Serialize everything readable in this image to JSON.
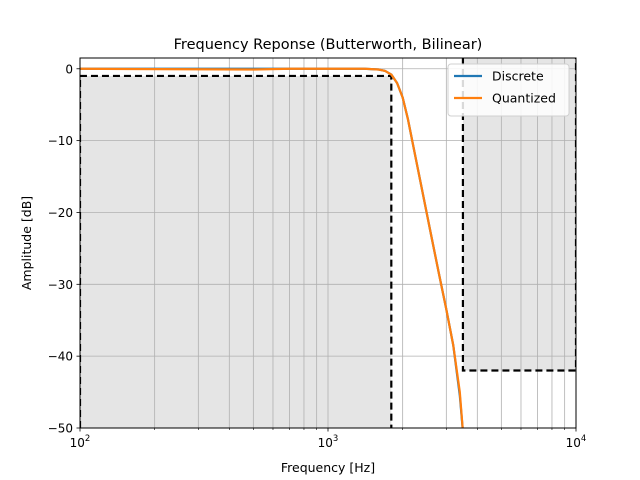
{
  "chart_data": {
    "type": "line",
    "title": "Frequency Reponse (Butterworth, Bilinear)",
    "xlabel": "Frequency [Hz]",
    "ylabel": "Amplitude [dB]",
    "xscale": "log",
    "xlim": [
      100,
      10000
    ],
    "ylim": [
      -50,
      1.5
    ],
    "grid": true,
    "grid_minor_x": true,
    "legend_position": "top-right",
    "x_ticks": [
      {
        "value": 100,
        "base": "10",
        "exp": "2"
      },
      {
        "value": 1000,
        "base": "10",
        "exp": "3"
      },
      {
        "value": 10000,
        "base": "10",
        "exp": "4"
      }
    ],
    "y_ticks": [
      {
        "value": 0,
        "label": "0"
      },
      {
        "value": -10,
        "label": "−10"
      },
      {
        "value": -20,
        "label": "−20"
      },
      {
        "value": -30,
        "label": "−30"
      },
      {
        "value": -40,
        "label": "−40"
      },
      {
        "value": -50,
        "label": "−50"
      }
    ],
    "series": [
      {
        "name": "Discrete",
        "color": "#1f77b4",
        "x": [
          100,
          500,
          1000,
          1400,
          1600,
          1700,
          1800,
          1900,
          2000,
          2100,
          2200,
          2400,
          2600,
          2800,
          3000,
          3200,
          3400,
          3500
        ],
        "y": [
          0,
          0,
          0,
          0,
          -0.1,
          -0.3,
          -0.8,
          -2.0,
          -4.0,
          -7.0,
          -10.5,
          -17.0,
          -23.0,
          -28.5,
          -33.5,
          -38.5,
          -45.5,
          -50.5
        ]
      },
      {
        "name": "Quantized",
        "color": "#ff7f0e",
        "x": [
          100,
          500,
          700,
          1000,
          1400,
          1600,
          1700,
          1800,
          1900,
          2000,
          2100,
          2200,
          2400,
          2600,
          2800,
          3000,
          3200,
          3400,
          3500
        ],
        "y": [
          0,
          -0.1,
          0,
          0,
          0,
          -0.1,
          -0.3,
          -0.8,
          -2.0,
          -4.0,
          -7.0,
          -10.5,
          -17.0,
          -23.0,
          -28.5,
          -33.5,
          -38.5,
          -45.0,
          -50.5
        ]
      }
    ],
    "spec_regions": [
      {
        "name": "passband",
        "x_from": 100,
        "x_to": 1800,
        "y_edge": -1,
        "fill": "#e5e5e5",
        "edge_color": "#000000"
      },
      {
        "name": "stopband",
        "x_from": 3500,
        "x_to": 10000,
        "y_edge": -42,
        "fill": "#e5e5e5",
        "edge_color": "#000000"
      }
    ]
  }
}
